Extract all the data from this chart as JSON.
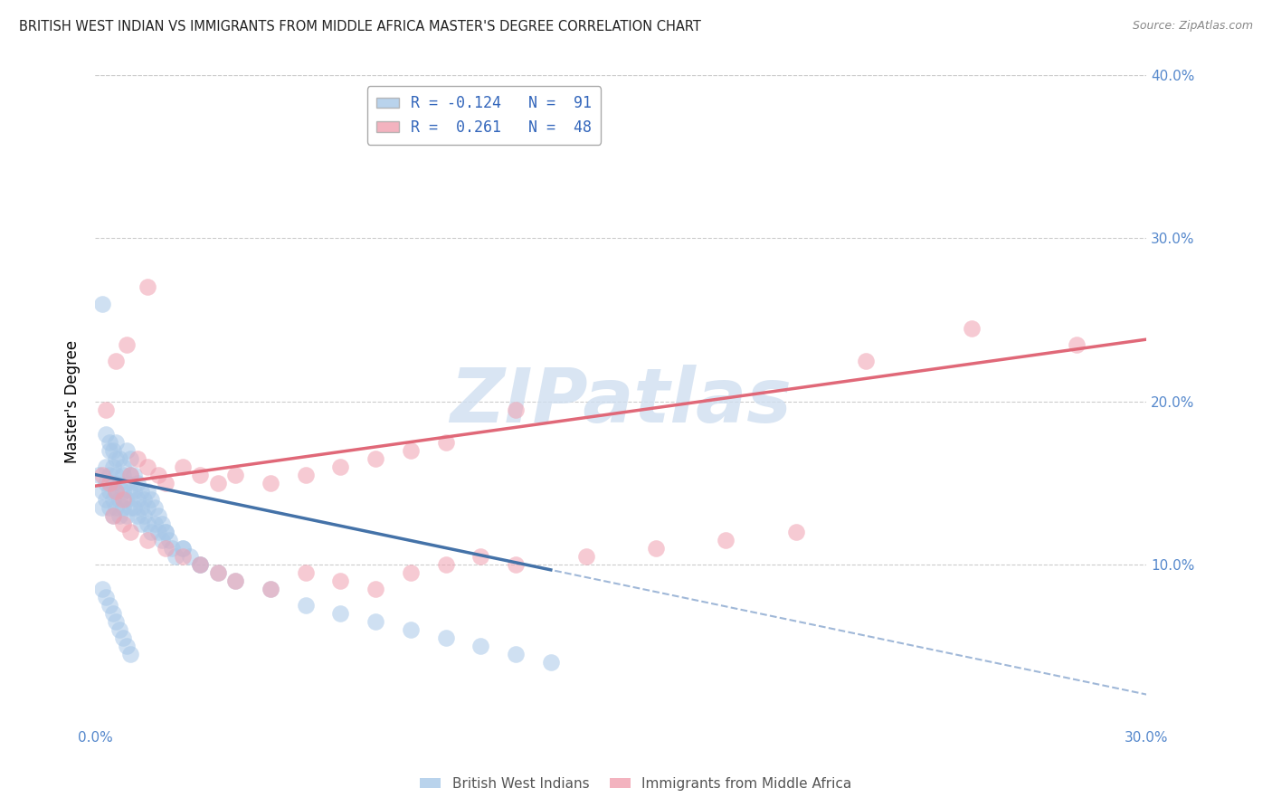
{
  "title": "BRITISH WEST INDIAN VS IMMIGRANTS FROM MIDDLE AFRICA MASTER'S DEGREE CORRELATION CHART",
  "source": "Source: ZipAtlas.com",
  "ylabel": "Master's Degree",
  "x_min": 0.0,
  "x_max": 0.3,
  "y_min": 0.0,
  "y_max": 0.4,
  "y_ticks": [
    0.0,
    0.1,
    0.2,
    0.3,
    0.4
  ],
  "x_ticks": [
    0.0,
    0.05,
    0.1,
    0.15,
    0.2,
    0.25,
    0.3
  ],
  "blue_color": "#a8c8e8",
  "pink_color": "#f0a0b0",
  "blue_line_color": "#4472a8",
  "pink_line_color": "#e06878",
  "dashed_line_color": "#a0b8d8",
  "watermark_text": "ZIPatlas",
  "watermark_color": "#d0dff0",
  "axis_label_color": "#5588cc",
  "title_color": "#222222",
  "source_color": "#888888",
  "blue_label": "R = -0.124   N =  91",
  "pink_label": "R =  0.261   N =  48",
  "bottom_blue_label": "British West Indians",
  "bottom_pink_label": "Immigrants from Middle Africa",
  "blue_x": [
    0.001,
    0.002,
    0.002,
    0.003,
    0.003,
    0.003,
    0.004,
    0.004,
    0.004,
    0.004,
    0.005,
    0.005,
    0.005,
    0.005,
    0.006,
    0.006,
    0.006,
    0.006,
    0.007,
    0.007,
    0.007,
    0.008,
    0.008,
    0.008,
    0.009,
    0.009,
    0.009,
    0.01,
    0.01,
    0.01,
    0.011,
    0.011,
    0.012,
    0.012,
    0.013,
    0.013,
    0.014,
    0.015,
    0.015,
    0.016,
    0.017,
    0.018,
    0.019,
    0.02,
    0.021,
    0.022,
    0.023,
    0.025,
    0.027,
    0.03,
    0.003,
    0.004,
    0.005,
    0.006,
    0.007,
    0.008,
    0.009,
    0.01,
    0.011,
    0.012,
    0.013,
    0.014,
    0.015,
    0.016,
    0.017,
    0.018,
    0.019,
    0.02,
    0.025,
    0.03,
    0.002,
    0.003,
    0.004,
    0.005,
    0.006,
    0.007,
    0.008,
    0.009,
    0.01,
    0.035,
    0.04,
    0.05,
    0.06,
    0.07,
    0.08,
    0.09,
    0.1,
    0.11,
    0.12,
    0.13,
    0.002
  ],
  "blue_y": [
    0.155,
    0.145,
    0.135,
    0.16,
    0.15,
    0.14,
    0.17,
    0.155,
    0.145,
    0.135,
    0.16,
    0.15,
    0.14,
    0.13,
    0.165,
    0.155,
    0.145,
    0.135,
    0.15,
    0.14,
    0.13,
    0.155,
    0.145,
    0.135,
    0.15,
    0.14,
    0.13,
    0.155,
    0.145,
    0.135,
    0.145,
    0.135,
    0.14,
    0.13,
    0.135,
    0.125,
    0.13,
    0.135,
    0.125,
    0.12,
    0.125,
    0.12,
    0.115,
    0.12,
    0.115,
    0.11,
    0.105,
    0.11,
    0.105,
    0.1,
    0.18,
    0.175,
    0.17,
    0.175,
    0.165,
    0.16,
    0.17,
    0.165,
    0.155,
    0.15,
    0.145,
    0.14,
    0.145,
    0.14,
    0.135,
    0.13,
    0.125,
    0.12,
    0.11,
    0.1,
    0.085,
    0.08,
    0.075,
    0.07,
    0.065,
    0.06,
    0.055,
    0.05,
    0.045,
    0.095,
    0.09,
    0.085,
    0.075,
    0.07,
    0.065,
    0.06,
    0.055,
    0.05,
    0.045,
    0.04,
    0.26
  ],
  "pink_x": [
    0.002,
    0.004,
    0.006,
    0.008,
    0.01,
    0.012,
    0.015,
    0.018,
    0.02,
    0.025,
    0.03,
    0.035,
    0.04,
    0.05,
    0.06,
    0.07,
    0.08,
    0.09,
    0.1,
    0.12,
    0.005,
    0.008,
    0.01,
    0.015,
    0.02,
    0.025,
    0.03,
    0.035,
    0.04,
    0.05,
    0.06,
    0.07,
    0.08,
    0.09,
    0.1,
    0.11,
    0.12,
    0.14,
    0.16,
    0.18,
    0.2,
    0.22,
    0.003,
    0.006,
    0.009,
    0.015,
    0.25,
    0.28
  ],
  "pink_y": [
    0.155,
    0.15,
    0.145,
    0.14,
    0.155,
    0.165,
    0.16,
    0.155,
    0.15,
    0.16,
    0.155,
    0.15,
    0.155,
    0.15,
    0.155,
    0.16,
    0.165,
    0.17,
    0.175,
    0.195,
    0.13,
    0.125,
    0.12,
    0.115,
    0.11,
    0.105,
    0.1,
    0.095,
    0.09,
    0.085,
    0.095,
    0.09,
    0.085,
    0.095,
    0.1,
    0.105,
    0.1,
    0.105,
    0.11,
    0.115,
    0.12,
    0.225,
    0.195,
    0.225,
    0.235,
    0.27,
    0.245,
    0.235
  ]
}
